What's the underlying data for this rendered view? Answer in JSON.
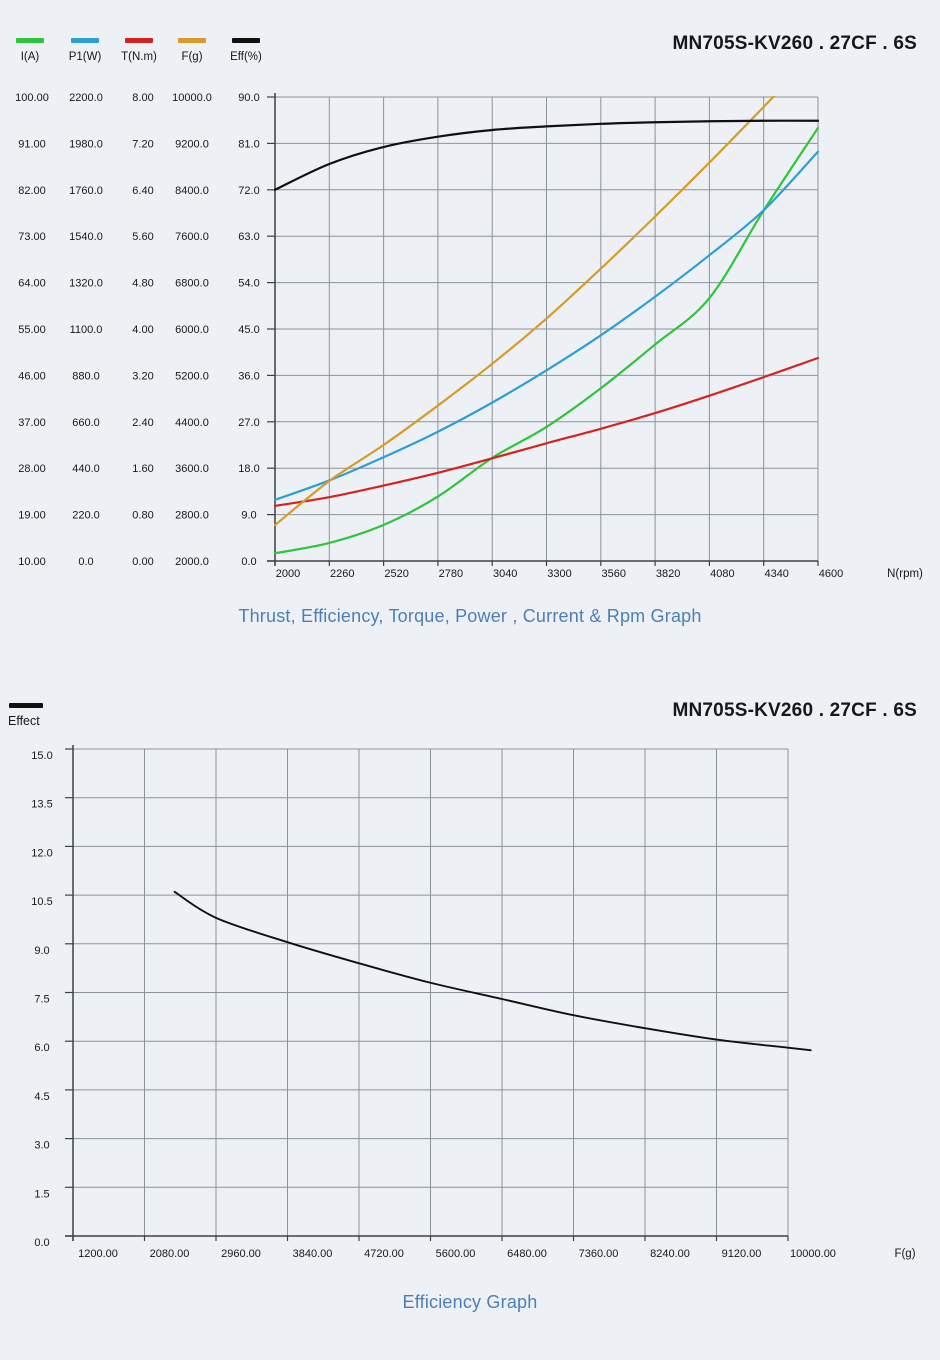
{
  "page": {
    "background_color": "#edf1f6",
    "caption_color": "#4d7eb5",
    "grid_color": "#8d939c",
    "axis_color": "#3c4148"
  },
  "chart_data": [
    {
      "type": "line",
      "title": "MN705S-KV260 . 27CF . 6S",
      "caption": "Thrust, Efficiency, Torque, Power , Current & Rpm Graph",
      "grid": true,
      "legend_position": "top-left",
      "legend": [
        {
          "label": "I(A)",
          "color": "#2ec43c"
        },
        {
          "label": "P1(W)",
          "color": "#2e9fd4"
        },
        {
          "label": "T(N.m)",
          "color": "#d42420"
        },
        {
          "label": "F(g)",
          "color": "#d89a28"
        },
        {
          "label": "Eff(%)",
          "color": "#101010"
        }
      ],
      "x_axis": {
        "label": "N(rpm)",
        "min": 2000,
        "max": 4600,
        "ticks": [
          "2000",
          "2260",
          "2520",
          "2780",
          "3040",
          "3300",
          "3560",
          "3820",
          "4080",
          "4340",
          "4600"
        ]
      },
      "y_axes": [
        {
          "name": "I(A)",
          "color": "#2ec43c",
          "min": 10,
          "max": 100,
          "ticks": [
            "100.00",
            "91.00",
            "82.00",
            "73.00",
            "64.00",
            "55.00",
            "46.00",
            "37.00",
            "28.00",
            "19.00",
            "10.00"
          ]
        },
        {
          "name": "P1(W)",
          "color": "#2e9fd4",
          "min": 0,
          "max": 2200,
          "ticks": [
            "2200.0",
            "1980.0",
            "1760.0",
            "1540.0",
            "1320.0",
            "1100.0",
            "880.0",
            "660.0",
            "440.0",
            "220.0",
            "0.0"
          ]
        },
        {
          "name": "T(N.m)",
          "color": "#d42420",
          "min": 0,
          "max": 8,
          "ticks": [
            "8.00",
            "7.20",
            "6.40",
            "5.60",
            "4.80",
            "4.00",
            "3.20",
            "2.40",
            "1.60",
            "0.80",
            "0.00"
          ]
        },
        {
          "name": "F(g)",
          "color": "#d89a28",
          "min": 2000,
          "max": 10000,
          "ticks": [
            "10000.0",
            "9200.0",
            "8400.0",
            "7600.0",
            "6800.0",
            "6000.0",
            "5200.0",
            "4400.0",
            "3600.0",
            "2800.0",
            "2000.0"
          ]
        },
        {
          "name": "Eff(%)",
          "color": "#101010",
          "min": 0,
          "max": 90,
          "ticks": [
            "90.0",
            "81.0",
            "72.0",
            "63.0",
            "54.0",
            "45.0",
            "36.0",
            "27.0",
            "18.0",
            "9.0",
            "0.0"
          ]
        }
      ],
      "series": [
        {
          "name": "I(A)",
          "axis": 0,
          "color": "#2ec43c",
          "points": [
            [
              2000,
              11.5
            ],
            [
              2260,
              13.5
            ],
            [
              2520,
              17
            ],
            [
              2780,
              22.5
            ],
            [
              3040,
              30
            ],
            [
              3300,
              36
            ],
            [
              3560,
              43.5
            ],
            [
              3820,
              52
            ],
            [
              4080,
              61
            ],
            [
              4340,
              78
            ],
            [
              4600,
              94
            ]
          ]
        },
        {
          "name": "P1(W)",
          "axis": 1,
          "color": "#2e9fd4",
          "points": [
            [
              2000,
              290
            ],
            [
              2260,
              382
            ],
            [
              2520,
              492
            ],
            [
              2780,
              613
            ],
            [
              3040,
              751
            ],
            [
              3300,
              904
            ],
            [
              3560,
              1070
            ],
            [
              3820,
              1253
            ],
            [
              4080,
              1450
            ],
            [
              4340,
              1663
            ],
            [
              4600,
              1941
            ]
          ]
        },
        {
          "name": "T(N.m)",
          "axis": 2,
          "color": "#d42420",
          "points": [
            [
              2000,
              0.95
            ],
            [
              2260,
              1.1
            ],
            [
              2520,
              1.3
            ],
            [
              2780,
              1.52
            ],
            [
              3040,
              1.77
            ],
            [
              3300,
              2.03
            ],
            [
              3560,
              2.28
            ],
            [
              3820,
              2.55
            ],
            [
              4080,
              2.85
            ],
            [
              4340,
              3.17
            ],
            [
              4600,
              3.5
            ]
          ]
        },
        {
          "name": "F(g)",
          "axis": 3,
          "color": "#d89a28",
          "points": [
            [
              2000,
              2620
            ],
            [
              2260,
              3380
            ],
            [
              2520,
              4000
            ],
            [
              2780,
              4680
            ],
            [
              3040,
              5400
            ],
            [
              3300,
              6180
            ],
            [
              3560,
              7040
            ],
            [
              3820,
              7940
            ],
            [
              4080,
              8870
            ],
            [
              4340,
              9830
            ],
            [
              4450,
              10250
            ]
          ]
        },
        {
          "name": "Eff(%)",
          "axis": 4,
          "color": "#101010",
          "points": [
            [
              2000,
              72
            ],
            [
              2260,
              77
            ],
            [
              2520,
              80.3
            ],
            [
              2780,
              82.3
            ],
            [
              3040,
              83.6
            ],
            [
              3300,
              84.3
            ],
            [
              3560,
              84.8
            ],
            [
              3820,
              85.1
            ],
            [
              4080,
              85.3
            ],
            [
              4340,
              85.4
            ],
            [
              4600,
              85.4
            ]
          ]
        }
      ]
    },
    {
      "type": "line",
      "title": "MN705S-KV260 . 27CF . 6S",
      "caption": "Efficiency Graph",
      "grid": true,
      "legend_position": "top-left",
      "legend": [
        {
          "label": "Effect",
          "color": "#101010"
        }
      ],
      "x_axis": {
        "label": "F(g)",
        "min": 1200,
        "max": 10000,
        "ticks": [
          "1200.00",
          "2080.00",
          "2960.00",
          "3840.00",
          "4720.00",
          "5600.00",
          "6480.00",
          "7360.00",
          "8240.00",
          "9120.00",
          "10000.00"
        ]
      },
      "y_axis": {
        "name": "Effect",
        "min": 0,
        "max": 15,
        "ticks": [
          "15.0",
          "13.5",
          "12.0",
          "10.5",
          "9.0",
          "7.5",
          "6.0",
          "4.5",
          "3.0",
          "1.5",
          "0.0"
        ]
      },
      "series": [
        {
          "name": "Effect",
          "axis": 0,
          "color": "#101010",
          "points": [
            [
              2450,
              10.6
            ],
            [
              2960,
              9.8
            ],
            [
              3840,
              9.05
            ],
            [
              4720,
              8.4
            ],
            [
              5600,
              7.8
            ],
            [
              6480,
              7.3
            ],
            [
              7360,
              6.8
            ],
            [
              8240,
              6.4
            ],
            [
              9120,
              6.05
            ],
            [
              10000,
              5.8
            ],
            [
              10280,
              5.72
            ]
          ]
        }
      ]
    }
  ]
}
